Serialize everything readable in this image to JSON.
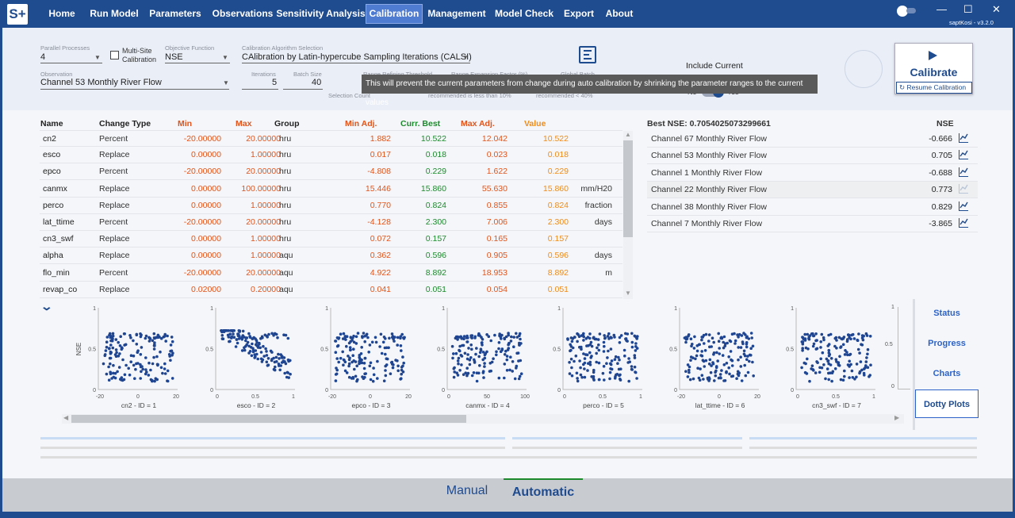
{
  "app": {
    "logo": "S+",
    "version": "v3.2.0",
    "user": "saptKosi"
  },
  "menu": [
    "Home",
    "Run Model",
    "Parameters",
    "Observations",
    "Sensitivity Analysis",
    "Calibration",
    "Management",
    "Model Check",
    "Export",
    "About"
  ],
  "window": {
    "min": "—",
    "max": "☐",
    "close": "✕"
  },
  "settings": {
    "parallel_label": "Parallel Processes",
    "parallel_value": "4",
    "multisite_label": "Multi-Site Calibration",
    "objective_label": "Objective Function",
    "objective_value": "NSE",
    "algorithm_label": "Calibration Algorithm Selection",
    "algorithm_value": "CAlibration by Latin-hypercube Sampling Iterations (CALSI)",
    "observation_label": "Observation",
    "observation_value": "Channel 53 Monthly River Flow",
    "iterations_label": "Iterations",
    "iterations_value": "5",
    "batch_label": "Batch Size",
    "batch_value": "40",
    "range_label": "Range Refining Threshold",
    "selection_label": "Selection Count",
    "range_exp_label": "Range Expansion Factor (%)",
    "range_exp_note": "recommended is less than 10%",
    "global_label": "Global Batch",
    "global_note": "recommended < 40%",
    "include_label": "Include Current",
    "include_no": "No",
    "include_yes": "Yes"
  },
  "tooltip": "This will prevent the current parameters from change during auto calibration by shrinking the parameter ranges to the current values",
  "calibrate": {
    "label": "Calibrate",
    "resume": "Resume Calibration"
  },
  "table": {
    "headers": [
      "Name",
      "Change Type",
      "Min",
      "Max",
      "Group",
      "Min Adj.",
      "Curr. Best",
      "Max Adj.",
      "Value"
    ],
    "rows": [
      [
        "cn2",
        "Percent",
        "-20.00000",
        "20.00000",
        "hru",
        "1.882",
        "10.522",
        "12.042",
        "10.522",
        ""
      ],
      [
        "esco",
        "Replace",
        "0.00000",
        "1.00000",
        "hru",
        "0.017",
        "0.018",
        "0.023",
        "0.018",
        ""
      ],
      [
        "epco",
        "Percent",
        "-20.00000",
        "20.00000",
        "hru",
        "-4.808",
        "0.229",
        "1.622",
        "0.229",
        ""
      ],
      [
        "canmx",
        "Replace",
        "0.00000",
        "100.00000",
        "hru",
        "15.446",
        "15.860",
        "55.630",
        "15.860",
        "mm/H20"
      ],
      [
        "perco",
        "Replace",
        "0.00000",
        "1.00000",
        "hru",
        "0.770",
        "0.824",
        "0.855",
        "0.824",
        "fraction"
      ],
      [
        "lat_ttime",
        "Percent",
        "-20.00000",
        "20.00000",
        "hru",
        "-4.128",
        "2.300",
        "7.006",
        "2.300",
        "days"
      ],
      [
        "cn3_swf",
        "Replace",
        "0.00000",
        "1.00000",
        "hru",
        "0.072",
        "0.157",
        "0.165",
        "0.157",
        ""
      ],
      [
        "alpha",
        "Replace",
        "0.00000",
        "1.00000",
        "aqu",
        "0.362",
        "0.596",
        "0.905",
        "0.596",
        "days"
      ],
      [
        "flo_min",
        "Percent",
        "-20.00000",
        "20.00000",
        "aqu",
        "4.922",
        "8.892",
        "18.953",
        "8.892",
        "m"
      ],
      [
        "revap_co",
        "Replace",
        "0.02000",
        "0.20000",
        "aqu",
        "0.041",
        "0.051",
        "0.054",
        "0.051",
        ""
      ]
    ]
  },
  "nse": {
    "best": "Best NSE: 0.7054025073299661",
    "header": "NSE",
    "rows": [
      [
        "Channel 67 Monthly River Flow",
        "-0.666"
      ],
      [
        "Channel 53 Monthly River Flow",
        "0.705"
      ],
      [
        "Channel 1 Monthly River Flow",
        "-0.688"
      ],
      [
        "Channel 22 Monthly River Flow",
        "0.773"
      ],
      [
        "Channel 38 Monthly River Flow",
        "0.829"
      ],
      [
        "Channel 7 Monthly River Flow",
        "-3.865"
      ]
    ]
  },
  "plots": {
    "ylabel": "NSE",
    "yticks": [
      "1",
      "0.5",
      "0"
    ],
    "items": [
      {
        "title": "cn2 - ID = 1",
        "ticks": [
          "-20",
          "0",
          "20"
        ]
      },
      {
        "title": "esco - ID = 2",
        "ticks": [
          "0",
          "0.5",
          "1"
        ]
      },
      {
        "title": "epco - ID = 3",
        "ticks": [
          "-20",
          "0",
          "20"
        ]
      },
      {
        "title": "canmx - ID = 4",
        "ticks": [
          "0",
          "50",
          "100"
        ]
      },
      {
        "title": "perco - ID = 5",
        "ticks": [
          "0",
          "0.5",
          "1"
        ]
      },
      {
        "title": "lat_ttime - ID = 6",
        "ticks": [
          "-20",
          "0",
          "20"
        ]
      },
      {
        "title": "cn3_swf - ID = 7",
        "ticks": [
          "0",
          "0.5",
          "1"
        ]
      }
    ]
  },
  "side_tabs": [
    "Status",
    "Progress",
    "Charts",
    "Dotty Plots"
  ],
  "bottom_tabs": [
    "Manual",
    "Automatic"
  ],
  "colors": {
    "accent": "#1f4b8f",
    "min": "#e2541b",
    "best": "#1e8a2e",
    "value": "#f08c1a",
    "dot": "#1f4591"
  }
}
